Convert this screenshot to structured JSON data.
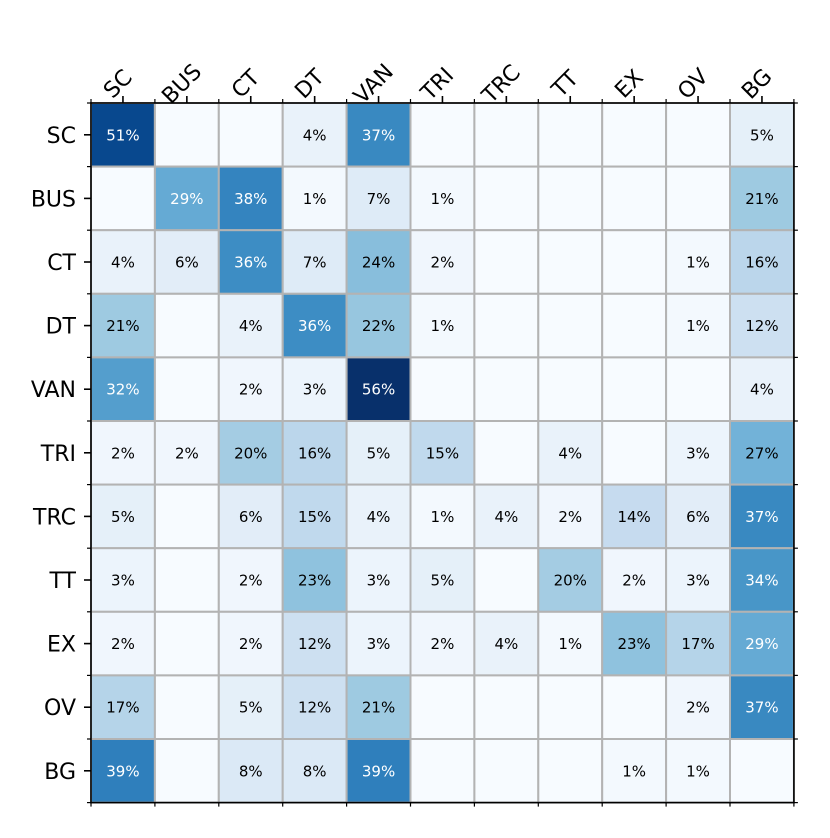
{
  "chart_data": {
    "type": "heatmap",
    "title": "",
    "xlabel": "",
    "ylabel": "",
    "row_labels": [
      "SC",
      "BUS",
      "CT",
      "DT",
      "VAN",
      "TRI",
      "TRC",
      "TT",
      "EX",
      "OV",
      "BG"
    ],
    "col_labels": [
      "SC",
      "BUS",
      "CT",
      "DT",
      "VAN",
      "TRI",
      "TRC",
      "TT",
      "EX",
      "OV",
      "BG"
    ],
    "values": [
      [
        51,
        0,
        0,
        4,
        37,
        0,
        0,
        0,
        0,
        0,
        5
      ],
      [
        0,
        29,
        38,
        1,
        7,
        1,
        0,
        0,
        0,
        0,
        21
      ],
      [
        4,
        6,
        36,
        7,
        24,
        2,
        0,
        0,
        0,
        1,
        16
      ],
      [
        21,
        0,
        4,
        36,
        22,
        1,
        0,
        0,
        0,
        1,
        12
      ],
      [
        32,
        0,
        2,
        3,
        56,
        0,
        0,
        0,
        0,
        0,
        4
      ],
      [
        2,
        2,
        20,
        16,
        5,
        15,
        0,
        4,
        0,
        3,
        27
      ],
      [
        5,
        0,
        6,
        15,
        4,
        1,
        4,
        2,
        14,
        6,
        37
      ],
      [
        3,
        0,
        2,
        23,
        3,
        5,
        0,
        20,
        2,
        3,
        34
      ],
      [
        2,
        0,
        2,
        12,
        3,
        2,
        4,
        1,
        23,
        17,
        29
      ],
      [
        17,
        0,
        5,
        12,
        21,
        0,
        0,
        0,
        0,
        2,
        37
      ],
      [
        39,
        0,
        8,
        8,
        39,
        0,
        0,
        0,
        1,
        1,
        0
      ]
    ],
    "cell_labels": [
      [
        "51%",
        "",
        "",
        "4%",
        "37%",
        "",
        "",
        "",
        "",
        "",
        "5%"
      ],
      [
        "",
        "29%",
        "38%",
        "1%",
        "7%",
        "1%",
        "",
        "",
        "",
        "",
        "21%"
      ],
      [
        "4%",
        "6%",
        "36%",
        "7%",
        "24%",
        "2%",
        "",
        "",
        "",
        "1%",
        "16%"
      ],
      [
        "21%",
        "",
        "4%",
        "36%",
        "22%",
        "1%",
        "",
        "",
        "",
        "1%",
        "12%"
      ],
      [
        "32%",
        "",
        "2%",
        "3%",
        "56%",
        "",
        "",
        "",
        "",
        "",
        "4%"
      ],
      [
        "2%",
        "2%",
        "20%",
        "16%",
        "5%",
        "15%",
        "",
        "4%",
        "",
        "3%",
        "27%"
      ],
      [
        "5%",
        "",
        "6%",
        "15%",
        "4%",
        "1%",
        "4%",
        "2%",
        "14%",
        "6%",
        "37%"
      ],
      [
        "3%",
        "",
        "2%",
        "23%",
        "3%",
        "5%",
        "",
        "20%",
        "2%",
        "3%",
        "34%"
      ],
      [
        "2%",
        "",
        "2%",
        "12%",
        "3%",
        "2%",
        "4%",
        "1%",
        "23%",
        "17%",
        "29%"
      ],
      [
        "17%",
        "",
        "5%",
        "12%",
        "21%",
        "",
        "",
        "",
        "",
        "2%",
        "37%"
      ],
      [
        "39%",
        "",
        "8%",
        "8%",
        "39%",
        "",
        "",
        "",
        "1%",
        "1%",
        ""
      ]
    ],
    "value_range": [
      0,
      56
    ],
    "colormap": "Blues",
    "colors": {
      "cell_border": "#b3b3b3",
      "text_light": "#ffffff",
      "text_dark": "#000000"
    },
    "grid": true
  }
}
